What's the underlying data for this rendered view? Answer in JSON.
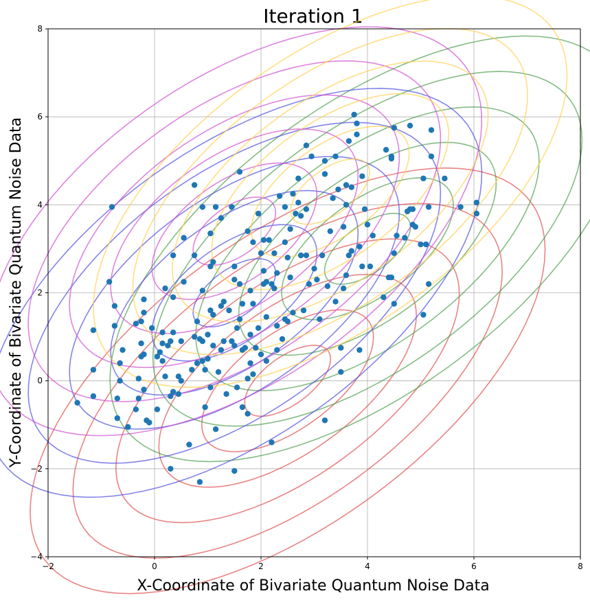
{
  "chart_data": {
    "type": "scatter",
    "title": "Iteration 1",
    "xlabel": "X-Coordinate of Bivariate Quantum Noise Data",
    "ylabel": "Y-Coordinate of Bivariate Quantum Noise Data",
    "xlim": [
      -2,
      8
    ],
    "ylim": [
      -4,
      8
    ],
    "xticks": [
      -2,
      0,
      2,
      4,
      6,
      8
    ],
    "yticks": [
      -4,
      -2,
      0,
      2,
      4,
      6,
      8
    ],
    "grid": true,
    "point_color": "#1f77b4",
    "points": [
      [
        -1.45,
        -0.5
      ],
      [
        -1.15,
        1.15
      ],
      [
        -1.15,
        0.25
      ],
      [
        -1.15,
        -0.35
      ],
      [
        -0.85,
        2.25
      ],
      [
        -0.8,
        3.95
      ],
      [
        -0.75,
        1.7
      ],
      [
        -0.75,
        1.25
      ],
      [
        -0.7,
        -0.4
      ],
      [
        -0.7,
        -0.85
      ],
      [
        -0.65,
        0.4
      ],
      [
        -0.65,
        0.0
      ],
      [
        -0.6,
        0.7
      ],
      [
        -0.5,
        -1.05
      ],
      [
        -0.35,
        1.3
      ],
      [
        -0.35,
        -0.65
      ],
      [
        -0.3,
        0.05
      ],
      [
        -0.3,
        -0.4
      ],
      [
        -0.25,
        1.35
      ],
      [
        -0.25,
        0.85
      ],
      [
        -0.25,
        0.55
      ],
      [
        -0.2,
        1.55
      ],
      [
        -0.2,
        0.6
      ],
      [
        -0.2,
        -0.2
      ],
      [
        -0.2,
        1.85
      ],
      [
        -0.15,
        -0.9
      ],
      [
        -0.1,
        -0.95
      ],
      [
        -0.05,
        1.2
      ],
      [
        0.05,
        0.55
      ],
      [
        0.05,
        -0.65
      ],
      [
        0.1,
        0.65
      ],
      [
        0.15,
        0.85
      ],
      [
        0.15,
        1.1
      ],
      [
        0.15,
        0.45
      ],
      [
        0.2,
        2.1
      ],
      [
        0.2,
        0.1
      ],
      [
        0.25,
        0.8
      ],
      [
        0.3,
        0.9
      ],
      [
        0.3,
        -0.35
      ],
      [
        0.3,
        -2.0
      ],
      [
        0.35,
        2.85
      ],
      [
        0.35,
        1.9
      ],
      [
        0.35,
        1.1
      ],
      [
        0.35,
        -0.25
      ],
      [
        0.45,
        0.1
      ],
      [
        0.45,
        -0.3
      ],
      [
        0.5,
        0.0
      ],
      [
        0.5,
        0.9
      ],
      [
        0.55,
        3.25
      ],
      [
        0.55,
        2.25
      ],
      [
        0.65,
        -1.45
      ],
      [
        0.7,
        0.25
      ],
      [
        0.75,
        4.45
      ],
      [
        0.75,
        2.85
      ],
      [
        0.75,
        1.0
      ],
      [
        0.8,
        1.35
      ],
      [
        0.8,
        0.4
      ],
      [
        0.85,
        0.95
      ],
      [
        0.85,
        -2.3
      ],
      [
        0.9,
        0.9
      ],
      [
        0.9,
        0.45
      ],
      [
        0.9,
        3.95
      ],
      [
        0.9,
        2.05
      ],
      [
        0.95,
        -0.6
      ],
      [
        0.95,
        0.25
      ],
      [
        1.0,
        1.05
      ],
      [
        1.0,
        0.5
      ],
      [
        1.05,
        -0.15
      ],
      [
        1.05,
        1.6
      ],
      [
        1.05,
        2.6
      ],
      [
        1.05,
        3.35
      ],
      [
        1.1,
        0.8
      ],
      [
        1.1,
        2.7
      ],
      [
        1.1,
        1.5
      ],
      [
        1.15,
        3.95
      ],
      [
        1.15,
        -1.1
      ],
      [
        1.2,
        0.2
      ],
      [
        1.25,
        0.7
      ],
      [
        1.25,
        3.7
      ],
      [
        1.25,
        1.7
      ],
      [
        1.3,
        1.8
      ],
      [
        1.3,
        0.9
      ],
      [
        1.35,
        -0.3
      ],
      [
        1.4,
        1.6
      ],
      [
        1.45,
        0.9
      ],
      [
        1.45,
        3.95
      ],
      [
        1.5,
        2.6
      ],
      [
        1.5,
        0.8
      ],
      [
        1.5,
        -2.05
      ],
      [
        1.5,
        2.3
      ],
      [
        1.55,
        1.2
      ],
      [
        1.55,
        -0.15
      ],
      [
        1.6,
        4.75
      ],
      [
        1.6,
        2.2
      ],
      [
        1.6,
        1.4
      ],
      [
        1.65,
        -0.6
      ],
      [
        1.65,
        0.7
      ],
      [
        1.65,
        1.75
      ],
      [
        1.7,
        0.75
      ],
      [
        1.75,
        3.4
      ],
      [
        1.75,
        0.05
      ],
      [
        1.75,
        -0.75
      ],
      [
        1.8,
        0.4
      ],
      [
        1.8,
        1.05
      ],
      [
        1.8,
        2.05
      ],
      [
        1.85,
        3.15
      ],
      [
        1.85,
        0.15
      ],
      [
        1.85,
        1.75
      ],
      [
        1.9,
        0.75
      ],
      [
        1.95,
        3.8
      ],
      [
        1.95,
        1.2
      ],
      [
        2.0,
        2.9
      ],
      [
        2.0,
        0.6
      ],
      [
        2.05,
        2.2
      ],
      [
        2.05,
        2.5
      ],
      [
        2.05,
        3.2
      ],
      [
        2.1,
        2.25
      ],
      [
        2.1,
        1.45
      ],
      [
        2.1,
        0.45
      ],
      [
        2.15,
        3.2
      ],
      [
        2.2,
        -1.4
      ],
      [
        2.2,
        2.2
      ],
      [
        2.25,
        2.9
      ],
      [
        2.25,
        2.1
      ],
      [
        2.3,
        1.25
      ],
      [
        2.3,
        0.7
      ],
      [
        2.3,
        2.45
      ],
      [
        2.35,
        4.2
      ],
      [
        2.4,
        0.95
      ],
      [
        2.45,
        3.95
      ],
      [
        2.45,
        1.4
      ],
      [
        2.45,
        3.15
      ],
      [
        2.5,
        2.8
      ],
      [
        2.5,
        1.35
      ],
      [
        2.55,
        3.45
      ],
      [
        2.55,
        2.35
      ],
      [
        2.6,
        4.25
      ],
      [
        2.6,
        1.55
      ],
      [
        2.65,
        3.8
      ],
      [
        2.7,
        4.05
      ],
      [
        2.7,
        4.6
      ],
      [
        2.75,
        3.75
      ],
      [
        2.75,
        2.85
      ],
      [
        2.8,
        1.6
      ],
      [
        2.85,
        5.35
      ],
      [
        2.85,
        3.9
      ],
      [
        2.85,
        2.85
      ],
      [
        2.9,
        2.2
      ],
      [
        2.95,
        5.1
      ],
      [
        3.0,
        2.55
      ],
      [
        3.05,
        2.3
      ],
      [
        3.1,
        1.4
      ],
      [
        3.15,
        2.85
      ],
      [
        3.2,
        5.0
      ],
      [
        3.2,
        4.7
      ],
      [
        3.2,
        -0.9
      ],
      [
        3.25,
        2.15
      ],
      [
        3.3,
        3.4
      ],
      [
        3.35,
        4.15
      ],
      [
        3.4,
        5.1
      ],
      [
        3.4,
        1.8
      ],
      [
        3.45,
        4.35
      ],
      [
        3.5,
        0.75
      ],
      [
        3.5,
        0.2
      ],
      [
        3.55,
        3.5
      ],
      [
        3.55,
        2.1
      ],
      [
        3.6,
        4.45
      ],
      [
        3.6,
        4.0
      ],
      [
        3.6,
        2.4
      ],
      [
        3.65,
        5.45
      ],
      [
        3.65,
        2.85
      ],
      [
        3.7,
        2.95
      ],
      [
        3.7,
        4.4
      ],
      [
        3.75,
        6.05
      ],
      [
        3.8,
        5.85
      ],
      [
        3.8,
        5.6
      ],
      [
        3.85,
        0.7
      ],
      [
        3.85,
        3.05
      ],
      [
        3.9,
        2.6
      ],
      [
        3.9,
        4.65
      ],
      [
        3.95,
        3.9
      ],
      [
        4.0,
        3.55
      ],
      [
        4.05,
        2.6
      ],
      [
        4.1,
        3.3
      ],
      [
        4.3,
        1.9
      ],
      [
        4.35,
        5.25
      ],
      [
        4.4,
        2.35
      ],
      [
        4.45,
        5.1
      ],
      [
        4.45,
        5.05
      ],
      [
        4.45,
        2.35
      ],
      [
        4.5,
        1.75
      ],
      [
        4.5,
        2.9
      ],
      [
        4.5,
        5.75
      ],
      [
        4.55,
        3.3
      ],
      [
        4.7,
        3.25
      ],
      [
        4.75,
        3.85
      ],
      [
        4.8,
        5.8
      ],
      [
        4.8,
        3.9
      ],
      [
        4.85,
        3.55
      ],
      [
        4.85,
        3.9
      ],
      [
        4.9,
        3.5
      ],
      [
        5.0,
        3.1
      ],
      [
        5.05,
        4.6
      ],
      [
        5.05,
        1.5
      ],
      [
        5.1,
        3.1
      ],
      [
        5.15,
        3.95
      ],
      [
        5.15,
        2.2
      ],
      [
        5.2,
        5.1
      ],
      [
        5.2,
        5.7
      ],
      [
        5.45,
        4.6
      ],
      [
        5.75,
        3.95
      ],
      [
        6.05,
        3.8
      ],
      [
        6.05,
        4.05
      ]
    ],
    "contours": [
      {
        "color": "#e05050",
        "mean": [
          2.5,
          0.0
        ],
        "cov": [
          [
            2.6,
            1.6
          ],
          [
            1.6,
            2.6
          ]
        ]
      },
      {
        "color": "#50a050",
        "mean": [
          4.0,
          3.0
        ],
        "cov": [
          [
            2.6,
            1.6
          ],
          [
            1.6,
            2.6
          ]
        ]
      },
      {
        "color": "#5050e0",
        "mean": [
          1.5,
          2.0
        ],
        "cov": [
          [
            2.4,
            1.4
          ],
          [
            1.4,
            2.4
          ]
        ]
      },
      {
        "color": "#d050d0",
        "mean": [
          1.5,
          3.4
        ],
        "cov": [
          [
            2.4,
            1.3
          ],
          [
            1.3,
            2.4
          ]
        ]
      },
      {
        "color": "#ffd050",
        "mean": [
          3.3,
          4.3
        ],
        "cov": [
          [
            2.2,
            1.3
          ],
          [
            1.3,
            2.2
          ]
        ]
      }
    ],
    "contour_levels": [
      0.5,
      1.0,
      1.5,
      2.0,
      2.5,
      3.0
    ]
  }
}
